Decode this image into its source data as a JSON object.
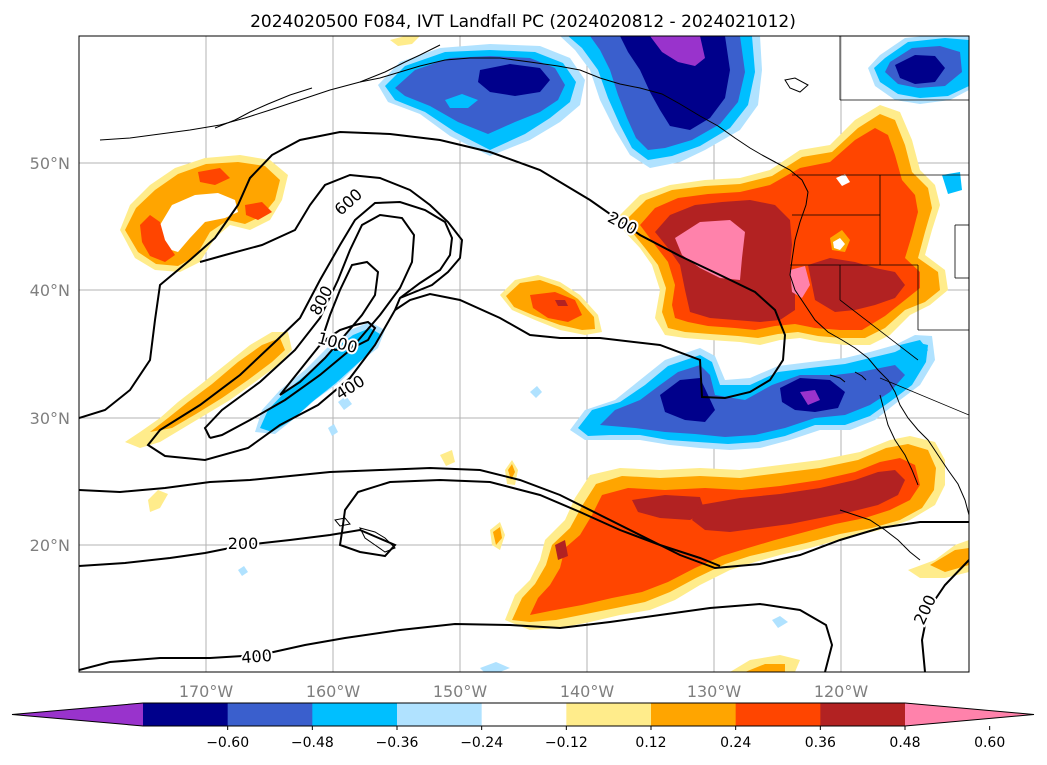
{
  "title": "2024020500 F084, IVT Landfall PC (2024020812 - 2024021012)",
  "map": {
    "lon_ticks": [
      "170°W",
      "160°W",
      "150°W",
      "140°W",
      "130°W",
      "120°W"
    ],
    "lat_ticks": [
      "50°N",
      "40°N",
      "30°N",
      "20°N"
    ],
    "lon_range": [
      -180,
      -110
    ],
    "lat_range": [
      10,
      60
    ],
    "grid": true
  },
  "contours": {
    "levels": [
      200,
      400,
      600,
      800,
      1000
    ],
    "labels": [
      "600",
      "200",
      "800",
      "1000",
      "400",
      "200",
      "400",
      "200"
    ]
  },
  "colorbar": {
    "ticks": [
      "−0.60",
      "−0.48",
      "−0.36",
      "−0.24",
      "−0.12",
      "0.12",
      "0.24",
      "0.36",
      "0.48",
      "0.60"
    ],
    "colors": [
      "#9933cc",
      "#00008b",
      "#3a5fcd",
      "#00bfff",
      "#b0e2ff",
      "#ffffff",
      "#ffec8b",
      "#ffa500",
      "#ff4500",
      "#b22222",
      "#ff82ab"
    ],
    "extend": "both"
  }
}
